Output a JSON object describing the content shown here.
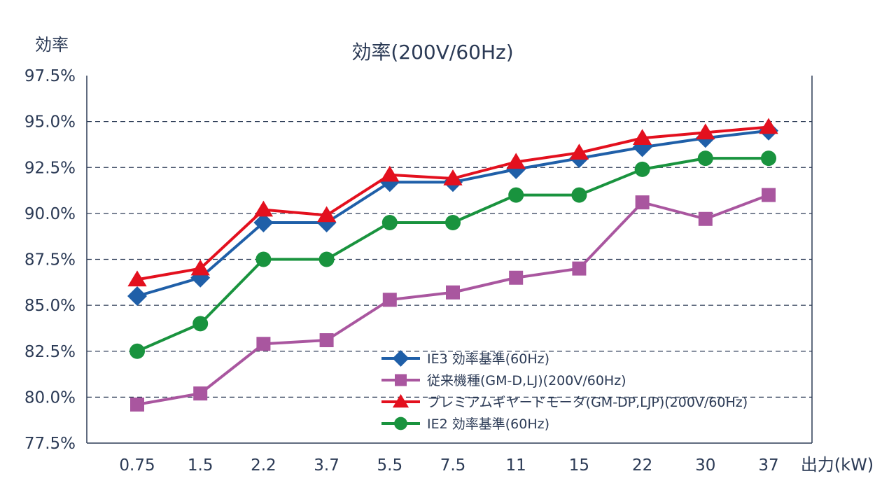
{
  "chart_data": {
    "type": "line",
    "title": "効率(200V/60Hz)",
    "ylabel": "効率",
    "xlabel": "出力(kW)",
    "categories": [
      "0.75",
      "1.5",
      "2.2",
      "3.7",
      "5.5",
      "7.5",
      "11",
      "15",
      "22",
      "30",
      "37"
    ],
    "ylim": [
      77.5,
      97.5
    ],
    "yticks": [
      "77.5%",
      "80.0%",
      "82.5%",
      "85.0%",
      "87.5%",
      "90.0%",
      "92.5%",
      "95.0%",
      "97.5%"
    ],
    "grid": "dashed horizontal",
    "legend_position": "bottom-right",
    "series": [
      {
        "name": "IE3 効率基準(60Hz)",
        "marker": "diamond",
        "color": "#1f5fa8",
        "values": [
          85.5,
          86.5,
          89.5,
          89.5,
          91.7,
          91.7,
          92.4,
          93.0,
          93.6,
          94.1,
          94.5
        ]
      },
      {
        "name": "従来機種(GM-D,LJ)(200V/60Hz)",
        "marker": "square",
        "color": "#a9569f",
        "values": [
          79.6,
          80.2,
          82.9,
          83.1,
          85.3,
          85.7,
          86.5,
          87.0,
          90.6,
          89.7,
          91.0
        ]
      },
      {
        "name": "プレミアムギヤードモータ(GM-DP,LJP)(200V/60Hz)",
        "marker": "triangle",
        "color": "#e3101e",
        "values": [
          86.4,
          87.0,
          90.2,
          89.9,
          92.1,
          91.9,
          92.8,
          93.3,
          94.1,
          94.4,
          94.7
        ]
      },
      {
        "name": "IE2 効率基準(60Hz)",
        "marker": "circle",
        "color": "#19933e",
        "values": [
          82.5,
          84.0,
          87.5,
          87.5,
          89.5,
          89.5,
          91.0,
          91.0,
          92.4,
          93.0,
          93.0
        ]
      }
    ]
  }
}
